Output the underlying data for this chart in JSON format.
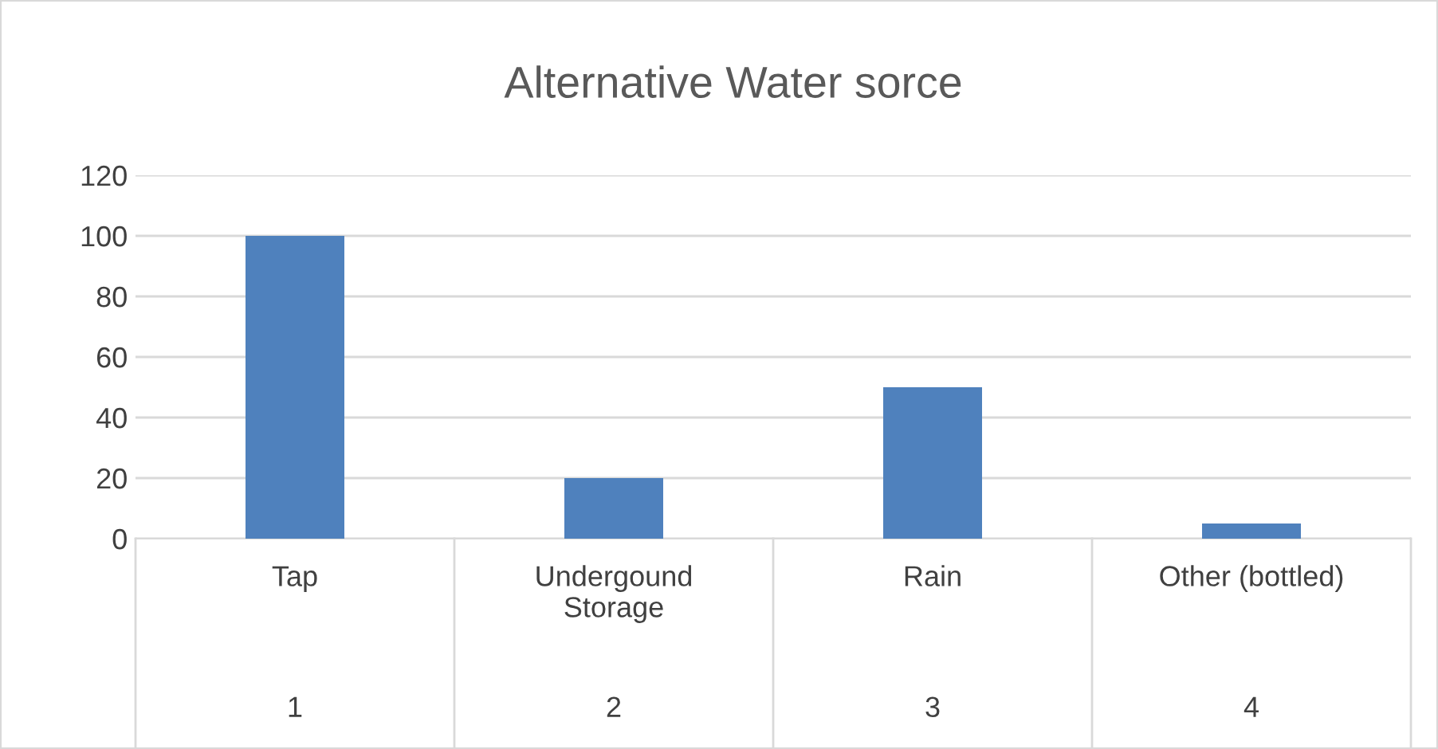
{
  "chart_data": {
    "type": "bar",
    "title": "Alternative Water sorce",
    "categories": [
      "Tap",
      "Undergound\nStorage",
      "Rain",
      "Other (bottled)"
    ],
    "values": [
      100,
      20,
      50,
      5
    ],
    "color": "#4f81bd",
    "ylim": [
      0,
      120
    ],
    "yticks": [
      0,
      20,
      40,
      60,
      80,
      100,
      120
    ],
    "grid": "y",
    "legend": false,
    "annotations": [
      "1",
      "2",
      "3",
      "4"
    ]
  }
}
